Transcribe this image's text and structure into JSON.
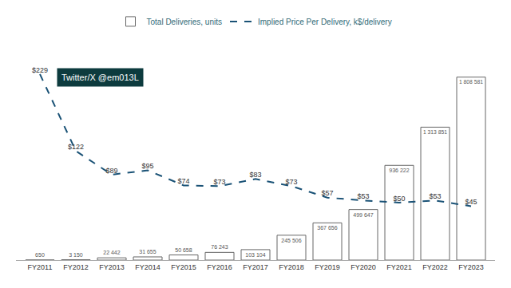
{
  "chart_data": {
    "type": "bar",
    "categories": [
      "FY2011",
      "FY2012",
      "FY2013",
      "FY2014",
      "FY2015",
      "FY2016",
      "FY2017",
      "FY2018",
      "FY2019",
      "FY2020",
      "FY2021",
      "FY2022",
      "FY2023"
    ],
    "series": [
      {
        "name": "Total Deliveries, units",
        "type": "bar",
        "color": "#ffffff",
        "values": [
          650,
          3150,
          22442,
          31655,
          50658,
          76243,
          103104,
          245506,
          367656,
          499647,
          936222,
          1313851,
          1808581
        ],
        "value_labels": [
          "650",
          "3 150",
          "22 442",
          "31 655",
          "50 658",
          "76 243",
          "103 104",
          "245 506",
          "367 656",
          "499 647",
          "936 222",
          "1 313 851",
          "1 808 581"
        ]
      },
      {
        "name": "Implied Price Per Delivery, k$/delivery",
        "type": "line",
        "axis": "y2",
        "color": "#1a5276",
        "line_style": "dashed",
        "values": [
          229,
          122,
          89,
          95,
          74,
          73,
          83,
          73,
          57,
          53,
          50,
          53,
          45
        ],
        "value_labels": [
          "$229",
          "$122",
          "$89",
          "$95",
          "$74",
          "$73",
          "$83",
          "$73",
          "$57",
          "$53",
          "$50",
          "$53",
          "$45"
        ]
      }
    ],
    "ylim": [
      0,
      2200000
    ],
    "y2lim": [
      -30,
      280
    ],
    "annotation": "Twitter/X @em013L",
    "legend": "top",
    "grid": false,
    "data_labels": true,
    "tick_labels": "x"
  }
}
